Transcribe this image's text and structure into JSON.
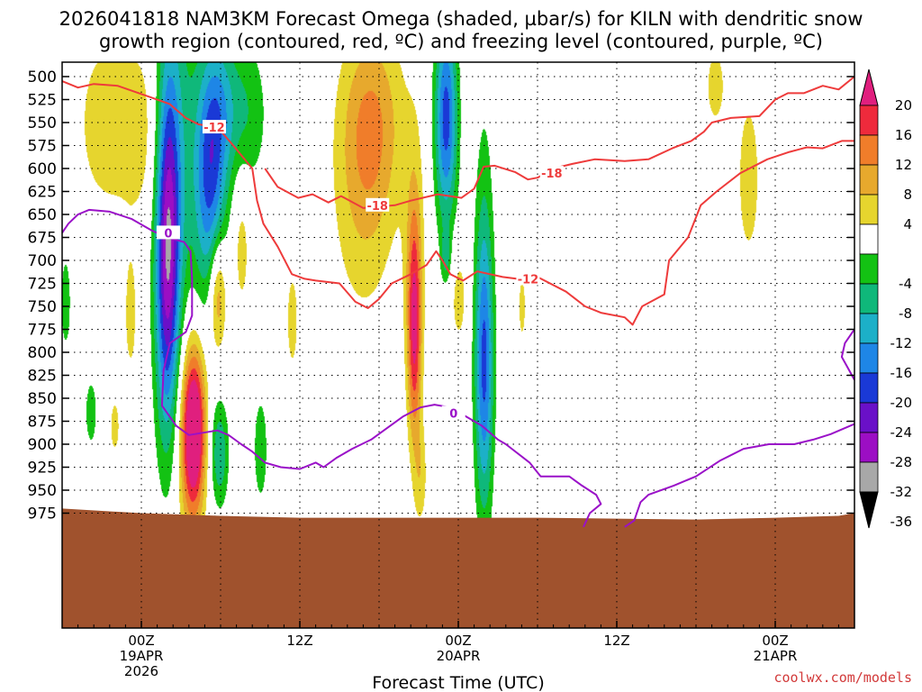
{
  "colors": {
    "ground": "#a0522d",
    "dgz_contour": "#ee3b3b",
    "freezing_contour": "#9a11c8",
    "grid": "#000000",
    "credit": "#d23a3a"
  },
  "chart_data": {
    "type": "heatmap",
    "title_lines": [
      "2026041818 NAM3KM Forecast Omega (shaded, µbar/s) for KILN with dendritic snow",
      "growth region (contoured, red, ºC) and freezing level (contoured, purple, ºC)"
    ],
    "xlabel": "Forecast Time (UTC)",
    "ylabel": "",
    "credit": "coolwx.com/models",
    "x_range_hours": [
      -5,
      45
    ],
    "grid": true,
    "x_ticks": [
      {
        "hour": 0,
        "lines": [
          "00Z",
          "19APR",
          "2026"
        ]
      },
      {
        "hour": 10,
        "lines": [
          "12Z"
        ]
      },
      {
        "hour": 20,
        "lines": [
          "00Z",
          "20APR"
        ]
      },
      {
        "hour": 30,
        "lines": [
          "12Z"
        ]
      },
      {
        "hour": 40,
        "lines": [
          "00Z",
          "21APR"
        ]
      }
    ],
    "y_ticks": [
      500,
      525,
      550,
      575,
      600,
      625,
      650,
      675,
      700,
      725,
      750,
      775,
      800,
      825,
      850,
      875,
      900,
      925,
      950,
      975
    ],
    "colorbar": {
      "labels": [
        "20",
        "16",
        "12",
        "8",
        "4",
        "-4",
        "-8",
        "-12",
        "-16",
        "-20",
        "-24",
        "-28",
        "-32",
        "-36"
      ],
      "bins": [
        {
          "lo": 16,
          "hi": 20,
          "color": "#ee2a3c"
        },
        {
          "lo": 12,
          "hi": 16,
          "color": "#f07d2a"
        },
        {
          "lo": 8,
          "hi": 12,
          "color": "#e7a92d"
        },
        {
          "lo": 4,
          "hi": 8,
          "color": "#e6d52e"
        },
        {
          "lo": -4,
          "hi": 4,
          "color": "#ffffff"
        },
        {
          "lo": -8,
          "hi": -4,
          "color": "#13c213"
        },
        {
          "lo": -12,
          "hi": -8,
          "color": "#0fb87a"
        },
        {
          "lo": -16,
          "hi": -12,
          "color": "#1cb0c8"
        },
        {
          "lo": -20,
          "hi": -16,
          "color": "#1e86e6"
        },
        {
          "lo": -24,
          "hi": -20,
          "color": "#1a39d6"
        },
        {
          "lo": -28,
          "hi": -24,
          "color": "#6a10c8"
        },
        {
          "lo": -32,
          "hi": -28,
          "color": "#9c0ec4"
        },
        {
          "lo": -36,
          "hi": -32,
          "color": "#a8a8a8"
        }
      ],
      "top_arrow_color": "#e01f7e",
      "bottom_arrow_color": "#000000"
    },
    "omega_features": [
      {
        "h": -2.5,
        "p": 550,
        "sh": 1.2,
        "sp": 70,
        "v": 6
      },
      {
        "h": 0.0,
        "p": 560,
        "sh": 1.2,
        "sp": 75,
        "v": 6
      },
      {
        "h": 2.3,
        "p": 560,
        "sh": 1.0,
        "sp": 150,
        "v": -8
      },
      {
        "h": 1.7,
        "p": 660,
        "sh": 0.55,
        "sp": 130,
        "v": -22
      },
      {
        "h": 1.5,
        "p": 760,
        "sh": 0.5,
        "sp": 120,
        "v": -10
      },
      {
        "h": 4.3,
        "p": 610,
        "sh": 0.7,
        "sp": 90,
        "v": -20
      },
      {
        "h": 5.0,
        "p": 530,
        "sh": 0.7,
        "sp": 60,
        "v": -8
      },
      {
        "h": 6.5,
        "p": 540,
        "sh": 1.0,
        "sp": 60,
        "v": -8
      },
      {
        "h": 3.3,
        "p": 880,
        "sh": 0.5,
        "sp": 60,
        "v": 22
      },
      {
        "h": 3.1,
        "p": 905,
        "sh": 0.6,
        "sp": 80,
        "v": 10
      },
      {
        "h": 4.8,
        "p": 735,
        "sh": 0.38,
        "sp": 45,
        "v": 14
      },
      {
        "h": 6.3,
        "p": 680,
        "sh": 0.4,
        "sp": 60,
        "v": 6
      },
      {
        "h": 4.9,
        "p": 910,
        "sh": 0.4,
        "sp": 40,
        "v": -12
      },
      {
        "h": 7.5,
        "p": 905,
        "sh": 0.3,
        "sp": 40,
        "v": -8
      },
      {
        "h": 14.5,
        "p": 545,
        "sh": 1.4,
        "sp": 75,
        "v": 11
      },
      {
        "h": 14.0,
        "p": 650,
        "sh": 1.4,
        "sp": 90,
        "v": 6
      },
      {
        "h": 19.2,
        "p": 545,
        "sh": 0.5,
        "sp": 80,
        "v": -22
      },
      {
        "h": 17.2,
        "p": 775,
        "sh": 0.3,
        "sp": 85,
        "v": 18
      },
      {
        "h": 17.2,
        "p": 700,
        "sh": 0.5,
        "sp": 110,
        "v": 6
      },
      {
        "h": 17.6,
        "p": 935,
        "sh": 0.3,
        "sp": 40,
        "v": 6
      },
      {
        "h": 19.2,
        "p": 695,
        "sh": 0.22,
        "sp": 20,
        "v": -8
      },
      {
        "h": 21.6,
        "p": 820,
        "sh": 0.4,
        "sp": 100,
        "v": -14
      },
      {
        "h": 21.6,
        "p": 760,
        "sh": 0.45,
        "sp": 160,
        "v": -8
      },
      {
        "h": 20.0,
        "p": 740,
        "sh": 0.4,
        "sp": 40,
        "v": 6
      },
      {
        "h": 24.0,
        "p": 750,
        "sh": 0.25,
        "sp": 40,
        "v": 5
      },
      {
        "h": 36.2,
        "p": 510,
        "sh": 0.5,
        "sp": 35,
        "v": 6
      },
      {
        "h": 38.3,
        "p": 610,
        "sh": 0.6,
        "sp": 75,
        "v": 6
      },
      {
        "h": -4.8,
        "p": 745,
        "sh": 0.22,
        "sp": 35,
        "v": -8
      },
      {
        "h": -3.2,
        "p": 865,
        "sh": 0.25,
        "sp": 25,
        "v": -8
      },
      {
        "h": -1.7,
        "p": 880,
        "sh": 0.25,
        "sp": 25,
        "v": 6
      },
      {
        "h": -0.7,
        "p": 760,
        "sh": 0.3,
        "sp": 50,
        "v": 6
      },
      {
        "h": 9.5,
        "p": 765,
        "sh": 0.3,
        "sp": 45,
        "v": 6
      }
    ],
    "dgz_contours": [
      {
        "label": "-12",
        "label_at": {
          "h": 4.6,
          "p": 555
        },
        "points": [
          [
            -5,
            505
          ],
          [
            -4,
            512
          ],
          [
            -3,
            508
          ],
          [
            -1.5,
            510
          ],
          [
            0.5,
            522
          ],
          [
            1.8,
            530
          ],
          [
            2.8,
            545
          ],
          [
            3.6,
            552
          ],
          [
            4.8,
            555
          ],
          [
            5.8,
            575
          ],
          [
            7.0,
            600
          ],
          [
            7.3,
            635
          ],
          [
            7.7,
            660
          ],
          [
            8.6,
            685
          ],
          [
            9.5,
            715
          ],
          [
            10.3,
            720
          ],
          [
            11.0,
            722
          ],
          [
            12.5,
            725
          ],
          [
            13.5,
            745
          ],
          [
            14.3,
            752
          ],
          [
            15.0,
            742
          ],
          [
            15.8,
            725
          ],
          [
            17.0,
            715
          ],
          [
            18.0,
            705
          ],
          [
            18.6,
            690
          ],
          [
            19.0,
            700
          ],
          [
            19.5,
            715
          ],
          [
            20.3,
            722
          ],
          [
            21.2,
            712
          ],
          [
            22.8,
            718
          ],
          [
            23.7,
            720
          ],
          [
            25.0,
            718
          ],
          [
            26.8,
            734
          ],
          [
            28.0,
            750
          ],
          [
            29.0,
            757
          ],
          [
            30.5,
            762
          ],
          [
            31.0,
            770
          ],
          [
            31.6,
            750
          ],
          [
            33.0,
            737
          ],
          [
            33.3,
            700
          ],
          [
            34.5,
            675
          ],
          [
            35.3,
            640
          ],
          [
            36.3,
            625
          ],
          [
            37.8,
            605
          ],
          [
            39.5,
            590
          ],
          [
            40.9,
            582
          ],
          [
            42.0,
            577
          ],
          [
            43.0,
            578
          ],
          [
            44.2,
            570
          ],
          [
            45,
            570
          ]
        ]
      },
      {
        "label": "-18",
        "label_at": {
          "h": 14.9,
          "p": 640
        },
        "points": [
          [
            7.8,
            600
          ],
          [
            8.6,
            620
          ],
          [
            9.9,
            632
          ],
          [
            10.8,
            628
          ],
          [
            11.8,
            637
          ],
          [
            12.6,
            630
          ],
          [
            14.0,
            643
          ],
          [
            16.0,
            640
          ],
          [
            17.0,
            635
          ],
          [
            18.7,
            628
          ],
          [
            20.2,
            632
          ],
          [
            21.0,
            622
          ],
          [
            21.6,
            598
          ],
          [
            22.3,
            597
          ],
          [
            23.6,
            604
          ],
          [
            24.4,
            612
          ],
          [
            25.0,
            610
          ],
          [
            26.0,
            600
          ],
          [
            27.2,
            595
          ],
          [
            28.6,
            590
          ],
          [
            30.5,
            592
          ],
          [
            32.0,
            590
          ],
          [
            33.5,
            578
          ],
          [
            34.7,
            570
          ],
          [
            35.5,
            560
          ],
          [
            36.0,
            550
          ],
          [
            37.2,
            545
          ],
          [
            39.0,
            543
          ],
          [
            40.0,
            525
          ],
          [
            40.8,
            518
          ],
          [
            41.8,
            518
          ],
          [
            43.0,
            510
          ],
          [
            44.0,
            514
          ],
          [
            45,
            500
          ]
        ]
      }
    ],
    "dgz_extra_label": {
      "label": "-18",
      "h": 25.9,
      "p": 605
    },
    "dgz_second_label": {
      "label": "-12",
      "h": 24.4,
      "p": 720
    },
    "freezing_contours": [
      {
        "label": "0",
        "label_at": {
          "h": 1.7,
          "p": 670
        },
        "points": [
          [
            -5,
            670
          ],
          [
            -4.6,
            660
          ],
          [
            -4,
            650
          ],
          [
            -3.3,
            645
          ],
          [
            -2,
            647
          ],
          [
            -0.6,
            655
          ],
          [
            0.6,
            667
          ],
          [
            1.6,
            675
          ],
          [
            2.7,
            680
          ],
          [
            3.1,
            690
          ],
          [
            3.2,
            720
          ],
          [
            3.2,
            760
          ],
          [
            2.8,
            778
          ],
          [
            1.8,
            790
          ],
          [
            1.4,
            820
          ],
          [
            1.3,
            858
          ],
          [
            2.2,
            880
          ],
          [
            3.0,
            890
          ],
          [
            4.8,
            885
          ],
          [
            5.5,
            890
          ],
          [
            6.3,
            900
          ],
          [
            7.0,
            908
          ],
          [
            7.8,
            920
          ],
          [
            8.8,
            925
          ],
          [
            10.0,
            927
          ],
          [
            11.0,
            920
          ],
          [
            11.5,
            925
          ],
          [
            12.3,
            915
          ],
          [
            13.3,
            905
          ],
          [
            14.5,
            895
          ],
          [
            15.3,
            885
          ],
          [
            16.5,
            870
          ],
          [
            17.6,
            860
          ],
          [
            18.5,
            857
          ],
          [
            19.5,
            860
          ],
          [
            20.5,
            870
          ],
          [
            21.5,
            880
          ],
          [
            22.5,
            895
          ],
          [
            23.0,
            900
          ],
          [
            24.5,
            920
          ],
          [
            25.2,
            935
          ],
          [
            26.0,
            935
          ],
          [
            27.0,
            935
          ],
          [
            27.8,
            945
          ],
          [
            28.7,
            955
          ],
          [
            29.0,
            965
          ],
          [
            28.3,
            975
          ],
          [
            27.9,
            990
          ]
        ]
      },
      {
        "label": "0",
        "label_at": {
          "h": 19.7,
          "p": 866
        },
        "points": [
          [
            30.5,
            990
          ],
          [
            31.1,
            983
          ],
          [
            31.5,
            963
          ],
          [
            32.0,
            955
          ],
          [
            33.6,
            945
          ],
          [
            35.0,
            935
          ],
          [
            36.5,
            918
          ],
          [
            38.0,
            905
          ],
          [
            39.6,
            900
          ],
          [
            41.2,
            900
          ],
          [
            42.4,
            895
          ],
          [
            43.5,
            889
          ],
          [
            45,
            878
          ]
        ]
      }
    ],
    "freezing_extra": [
      [
        45,
        775
      ],
      [
        44.4,
        790
      ],
      [
        44.2,
        805
      ],
      [
        45,
        830
      ]
    ],
    "ground_profile": [
      [
        -5,
        970
      ],
      [
        0,
        975
      ],
      [
        5,
        978
      ],
      [
        10,
        980
      ],
      [
        20,
        980
      ],
      [
        25,
        980
      ],
      [
        30,
        981
      ],
      [
        35,
        982
      ],
      [
        40,
        980
      ],
      [
        44,
        978
      ],
      [
        45,
        975
      ]
    ]
  }
}
